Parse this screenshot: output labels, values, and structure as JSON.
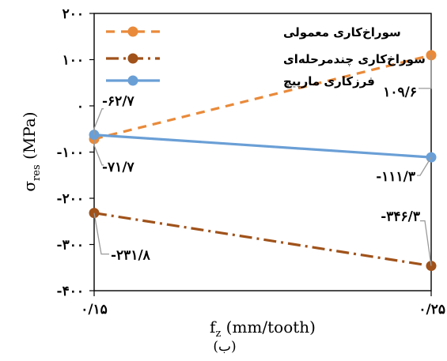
{
  "chart_data": {
    "type": "line",
    "x": [
      0.15,
      0.25
    ],
    "x_tick_labels": [
      "۰/۱۵",
      "۰/۲۵"
    ],
    "y_tick_labels": [
      "۲۰۰",
      "۱۰۰",
      "۰",
      "-۱۰۰",
      "-۲۰۰",
      "-۳۰۰",
      "-۴۰۰"
    ],
    "y_ticks": [
      200,
      100,
      0,
      -100,
      -200,
      -300,
      -400
    ],
    "ylim": [
      -400,
      200
    ],
    "xlabel": "f",
    "xlabel_sub": "z",
    "xlabel_unit": " (mm/tooth)",
    "ylabel": "σ",
    "ylabel_sub": "res",
    "ylabel_unit": " (MPa)",
    "caption": "(ب)",
    "legend_position": "top-left",
    "series": [
      {
        "name": "سوراخ‌کاری معمولی",
        "values": [
          -71.7,
          109.6
        ],
        "labels": [
          "-۷۱/۷",
          "۱۰۹/۶"
        ],
        "color": "#E98A3A",
        "dash": "dash"
      },
      {
        "name": "سوراخ‌کاری چندمرحله‌ای",
        "values": [
          -231.8,
          -346.3
        ],
        "labels": [
          "-۲۳۱/۸",
          "-۳۴۶/۳"
        ],
        "color": "#A0521A",
        "dash": "dashdot"
      },
      {
        "name": "فرزکاری مارپیچ",
        "values": [
          -62.7,
          -111.3
        ],
        "labels": [
          "-۶۲/۷",
          "-۱۱۱/۳"
        ],
        "color": "#6A9FD6",
        "dash": "solid"
      }
    ]
  }
}
